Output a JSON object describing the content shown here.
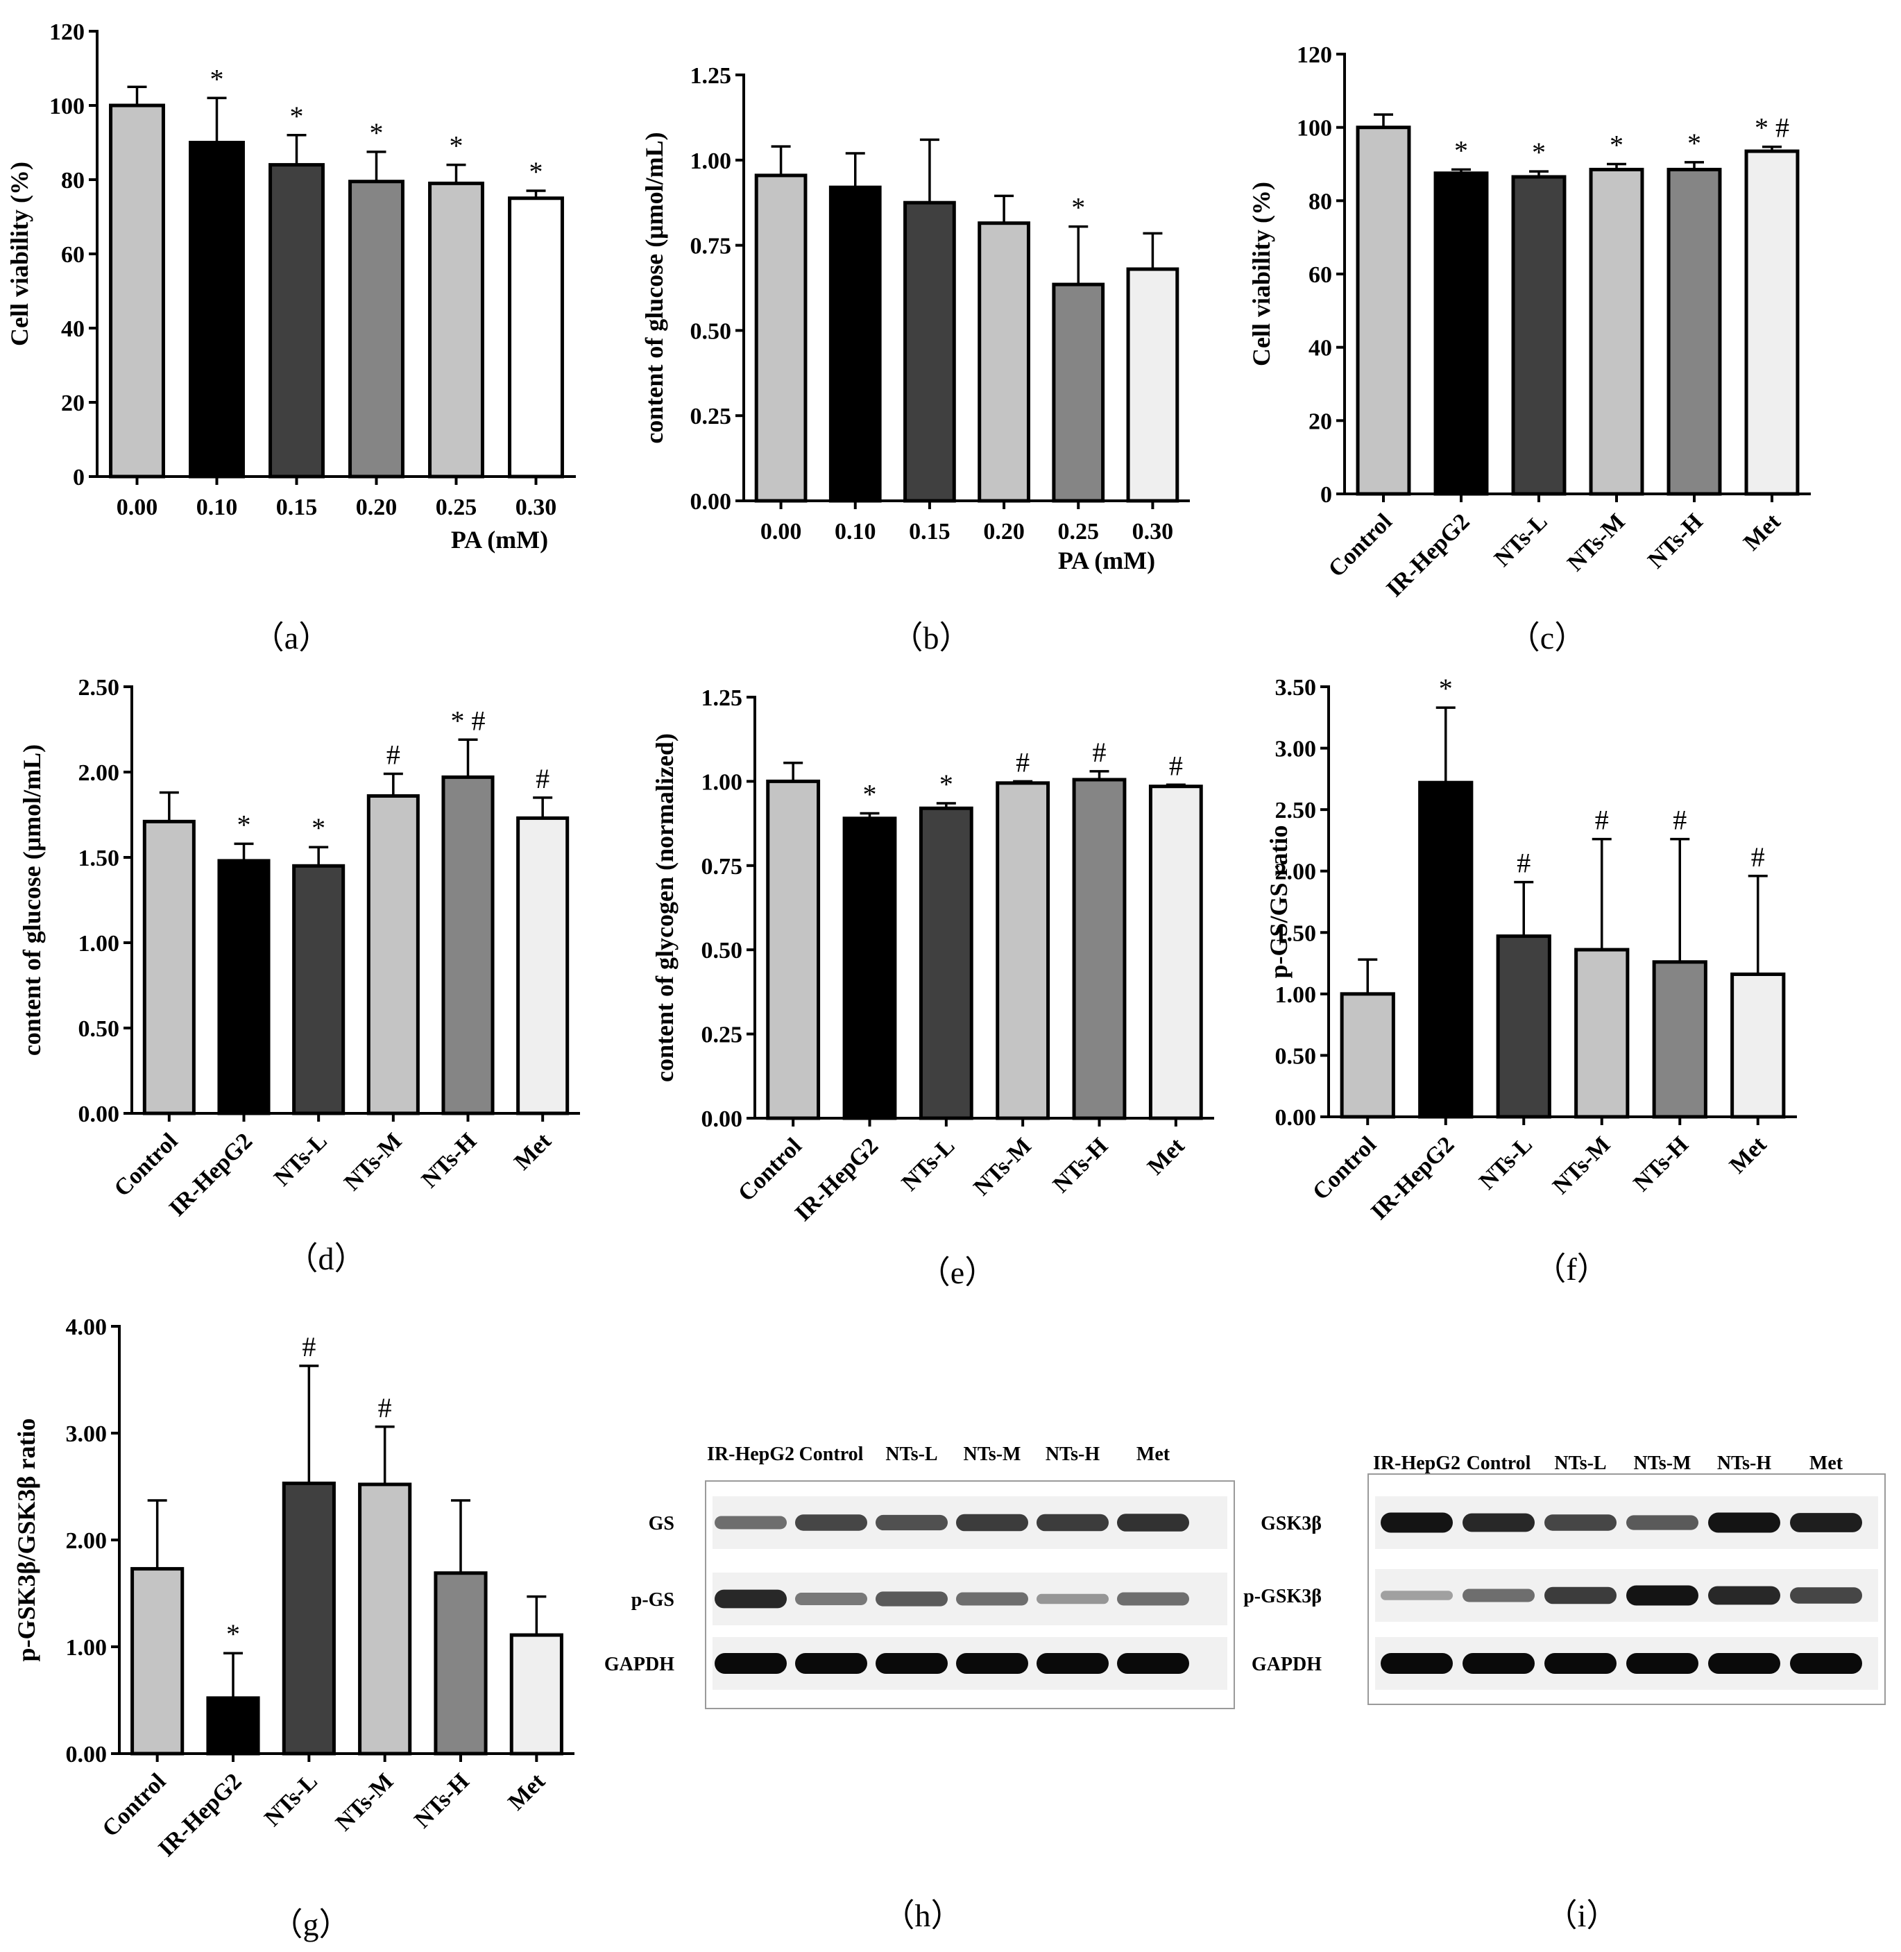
{
  "colors": {
    "light_gray": "#c4c4c4",
    "black": "#000000",
    "dark_gray": "#404040",
    "mid_gray": "#858585",
    "pale": "#efefef",
    "white": "#ffffff"
  },
  "chart_data": [
    {
      "id": "a",
      "type": "bar",
      "panel_label": "（a）",
      "categories": [
        "0.00",
        "0.10",
        "0.15",
        "0.20",
        "0.25",
        "0.30"
      ],
      "values": [
        100,
        90,
        84,
        79.5,
        79,
        75
      ],
      "errors": [
        5,
        12,
        8,
        8,
        5,
        2
      ],
      "marks": [
        "",
        "*",
        "*",
        "*",
        "*",
        "*"
      ],
      "fills": [
        "light_gray",
        "black",
        "dark_gray",
        "mid_gray",
        "light_gray",
        "white"
      ],
      "ylabel": "Cell viability (%)",
      "xlabel": "PA (mM)",
      "ylim": [
        0,
        120
      ],
      "yticks": [
        "0",
        "20",
        "40",
        "60",
        "80",
        "100",
        "120"
      ],
      "rotate_x": false
    },
    {
      "id": "b",
      "type": "bar",
      "panel_label": "（b）",
      "categories": [
        "0.00",
        "0.10",
        "0.15",
        "0.20",
        "0.25",
        "0.30"
      ],
      "values": [
        0.955,
        0.92,
        0.875,
        0.815,
        0.635,
        0.68
      ],
      "errors": [
        0.085,
        0.1,
        0.185,
        0.08,
        0.17,
        0.105
      ],
      "marks": [
        "",
        "",
        "",
        "",
        "*",
        ""
      ],
      "fills": [
        "light_gray",
        "black",
        "dark_gray",
        "light_gray",
        "mid_gray",
        "pale"
      ],
      "ylabel": "content of  glucose (μmol/mL)",
      "xlabel": "PA (mM)",
      "ylim": [
        0,
        1.25
      ],
      "yticks": [
        "0.00",
        "0.25",
        "0.50",
        "0.75",
        "1.00",
        "1.25"
      ],
      "rotate_x": false
    },
    {
      "id": "c",
      "type": "bar",
      "panel_label": "（c）",
      "categories": [
        "Control",
        "IR-HepG2",
        "NTs-L",
        "NTs-M",
        "NTs-H",
        "Met"
      ],
      "values": [
        100,
        87.5,
        86.5,
        88.5,
        88.5,
        93.5
      ],
      "errors": [
        3.5,
        1,
        1.5,
        1.5,
        2,
        1.2
      ],
      "marks": [
        "",
        "*",
        "*",
        "*",
        "*",
        "* #"
      ],
      "fills": [
        "light_gray",
        "black",
        "dark_gray",
        "light_gray",
        "mid_gray",
        "pale"
      ],
      "ylabel": "Cell viability (%)",
      "xlabel": "",
      "ylim": [
        0,
        120
      ],
      "yticks": [
        "0",
        "20",
        "40",
        "60",
        "80",
        "100",
        "120"
      ],
      "rotate_x": true
    },
    {
      "id": "d",
      "type": "bar",
      "panel_label": "（d）",
      "categories": [
        "Control",
        "IR-HepG2",
        "NTs-L",
        "NTs-M",
        "NTs-H",
        "Met"
      ],
      "values": [
        1.71,
        1.48,
        1.45,
        1.86,
        1.97,
        1.73
      ],
      "errors": [
        0.17,
        0.1,
        0.11,
        0.13,
        0.22,
        0.12
      ],
      "marks": [
        "",
        "*",
        "*",
        "#",
        "* #",
        "#"
      ],
      "fills": [
        "light_gray",
        "black",
        "dark_gray",
        "light_gray",
        "mid_gray",
        "pale"
      ],
      "ylabel": "content of  glucose (μmol/mL)",
      "xlabel": "",
      "ylim": [
        0,
        2.5
      ],
      "yticks": [
        "0.00",
        "0.50",
        "1.00",
        "1.50",
        "2.00",
        "2.50"
      ],
      "rotate_x": true
    },
    {
      "id": "e",
      "type": "bar",
      "panel_label": "（e）",
      "categories": [
        "Control",
        "IR-HepG2",
        "NTs-L",
        "NTs-M",
        "NTs-H",
        "Met"
      ],
      "values": [
        1.0,
        0.89,
        0.92,
        0.995,
        1.005,
        0.985
      ],
      "errors": [
        0.055,
        0.015,
        0.015,
        0.005,
        0.025,
        0.005
      ],
      "marks": [
        "",
        "*",
        "*",
        "#",
        "#",
        "#"
      ],
      "fills": [
        "light_gray",
        "black",
        "dark_gray",
        "light_gray",
        "mid_gray",
        "pale"
      ],
      "ylabel": "content of glycogen (normalized)",
      "xlabel": "",
      "ylim": [
        0,
        1.25
      ],
      "yticks": [
        "0.00",
        "0.25",
        "0.50",
        "0.75",
        "1.00",
        "1.25"
      ],
      "rotate_x": true
    },
    {
      "id": "f",
      "type": "bar",
      "panel_label": "（f）",
      "categories": [
        "Control",
        "IR-HepG2",
        "NTs-L",
        "NTs-M",
        "NTs-H",
        "Met"
      ],
      "values": [
        1.0,
        2.72,
        1.47,
        1.36,
        1.26,
        1.16
      ],
      "errors": [
        0.28,
        0.61,
        0.44,
        0.9,
        1.0,
        0.8
      ],
      "marks": [
        "",
        "*",
        "#",
        "#",
        "#",
        "#"
      ],
      "fills": [
        "light_gray",
        "black",
        "dark_gray",
        "light_gray",
        "mid_gray",
        "pale"
      ],
      "ylabel": "p-GS/GS ratio",
      "xlabel": "",
      "ylim": [
        0,
        3.5
      ],
      "yticks": [
        "0.00",
        "0.50",
        "1.00",
        "1.50",
        "2.00",
        "2.50",
        "3.00",
        "3.50"
      ],
      "rotate_x": true
    },
    {
      "id": "g",
      "type": "bar",
      "panel_label": "（g）",
      "categories": [
        "Control",
        "IR-HepG2",
        "NTs-L",
        "NTs-M",
        "NTs-H",
        "Met"
      ],
      "values": [
        1.73,
        0.52,
        2.53,
        2.52,
        1.69,
        1.11
      ],
      "errors": [
        0.64,
        0.42,
        1.1,
        0.54,
        0.68,
        0.36
      ],
      "marks": [
        "",
        "*",
        "#",
        "#",
        "",
        ""
      ],
      "fills": [
        "light_gray",
        "black",
        "dark_gray",
        "light_gray",
        "mid_gray",
        "pale"
      ],
      "ylabel": "p-GSK3β/GSK3β ratio",
      "xlabel": "",
      "ylim": [
        0,
        4
      ],
      "yticks": [
        "0.00",
        "1.00",
        "2.00",
        "3.00",
        "4.00"
      ],
      "rotate_x": true
    }
  ],
  "blots": [
    {
      "id": "h",
      "panel_label": "（h）",
      "lanes": [
        "IR-HepG2",
        "Control",
        "NTs-L",
        "NTs-M",
        "NTs-H",
        "Met"
      ],
      "rows": [
        {
          "label": "GS",
          "intensity": [
            0.5,
            0.7,
            0.65,
            0.75,
            0.75,
            0.8
          ]
        },
        {
          "label": "p-GS",
          "intensity": [
            0.85,
            0.45,
            0.6,
            0.5,
            0.3,
            0.5
          ]
        },
        {
          "label": "GAPDH",
          "intensity": [
            1,
            1,
            1,
            1,
            1,
            1
          ]
        }
      ]
    },
    {
      "id": "i",
      "panel_label": "（i）",
      "lanes": [
        "IR-HepG2",
        "Control",
        "NTs-L",
        "NTs-M",
        "NTs-H",
        "Met"
      ],
      "rows": [
        {
          "label": "GSK3β",
          "intensity": [
            0.95,
            0.85,
            0.7,
            0.6,
            0.95,
            0.9
          ]
        },
        {
          "label": "p-GSK3β",
          "intensity": [
            0.25,
            0.5,
            0.75,
            0.95,
            0.85,
            0.7
          ]
        },
        {
          "label": "GAPDH",
          "intensity": [
            1,
            1,
            1,
            1,
            1,
            1
          ]
        }
      ]
    }
  ]
}
